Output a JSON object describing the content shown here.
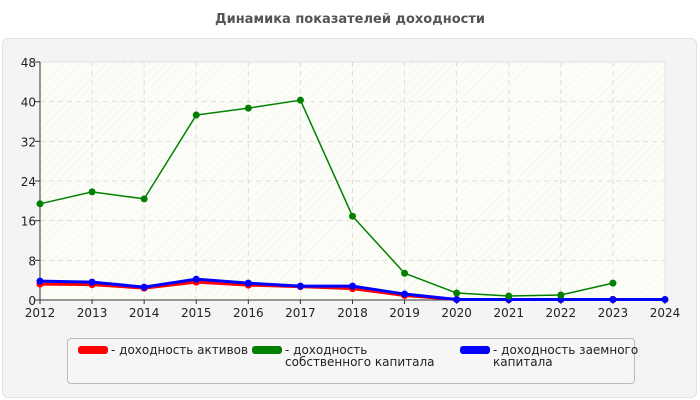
{
  "chart_data": {
    "type": "line",
    "title": "Динамика показателей доходности",
    "x": [
      2012,
      2013,
      2014,
      2015,
      2016,
      2017,
      2018,
      2019,
      2020,
      2021,
      2022,
      2023,
      2024
    ],
    "xlabels": [
      "2012",
      "2013",
      "2014",
      "2015",
      "2016",
      "2017",
      "2018",
      "2019",
      "2020",
      "2021",
      "2022",
      "2023",
      "2024"
    ],
    "ylim": [
      0,
      48
    ],
    "yticks": [
      0,
      8,
      16,
      24,
      32,
      40,
      48
    ],
    "ytick_labels": [
      "0",
      "8",
      "16",
      "24",
      "32",
      "40",
      "48"
    ],
    "grid": true,
    "legend_placement": "bottom",
    "series": [
      {
        "name": "- доходность активов",
        "color": "#ff0000",
        "values": [
          3.2,
          3.1,
          2.4,
          3.6,
          3.0,
          2.7,
          2.3,
          0.9,
          0.1,
          0.1,
          0.1,
          0.1,
          null
        ]
      },
      {
        "name": "- доходность собственного капитала",
        "color": "#008000",
        "values": [
          19.4,
          21.8,
          20.4,
          37.3,
          38.7,
          40.3,
          16.9,
          5.4,
          1.4,
          0.8,
          1.0,
          3.4,
          null
        ]
      },
      {
        "name": "- доходность заемного капитала",
        "color": "#0000ff",
        "values": [
          3.8,
          3.6,
          2.6,
          4.2,
          3.4,
          2.8,
          2.8,
          1.2,
          0.1,
          0.1,
          0.1,
          0.1,
          0.1
        ]
      }
    ]
  }
}
